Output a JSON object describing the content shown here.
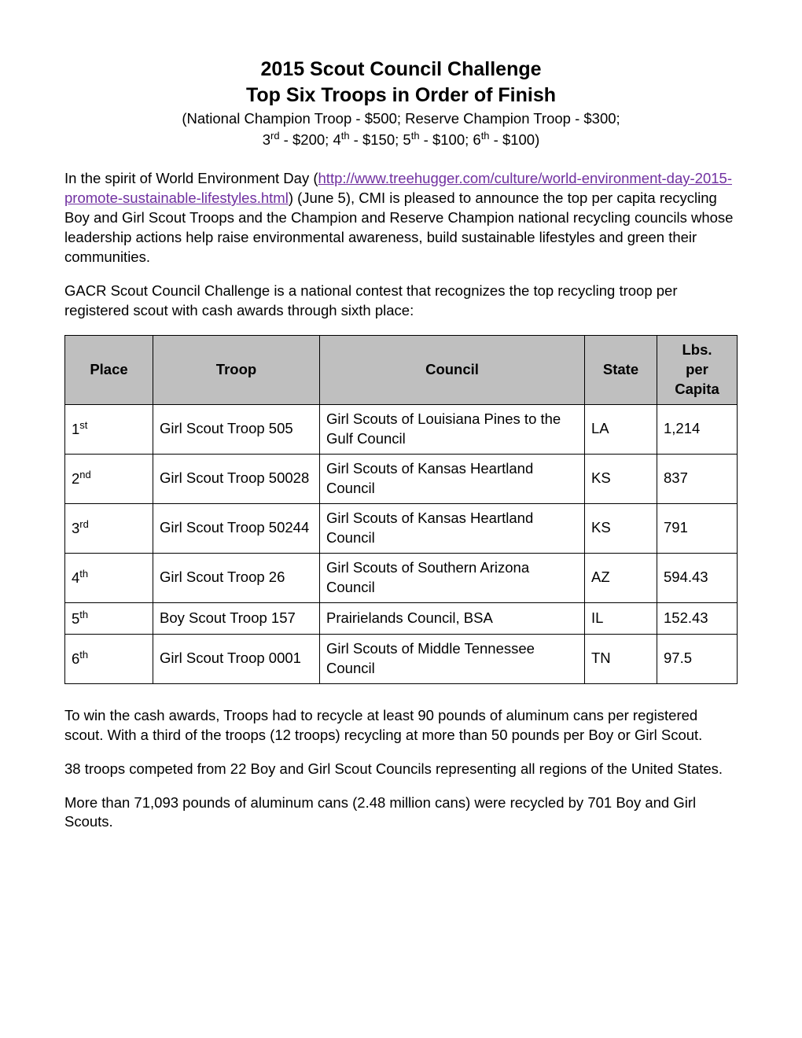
{
  "title": {
    "line1": "2015 Scout Council Challenge",
    "line2": "Top Six Troops in Order of Finish"
  },
  "subtitle": {
    "line1": "(National Champion Troop - $500; Reserve Champion Troop - $300;",
    "prize3_prefix": "3",
    "prize3_suffix": "rd",
    "prize3_amt": " - $200; ",
    "prize4_prefix": "4",
    "prize4_suffix": "th",
    "prize4_amt": " - $150; ",
    "prize5_prefix": "5",
    "prize5_suffix": "th",
    "prize5_amt": " - $100; ",
    "prize6_prefix": "6",
    "prize6_suffix": "th",
    "prize6_amt": " - $100)"
  },
  "intro": {
    "part1": "In the spirit of World Environment Day (",
    "link_text": "http://www.treehugger.com/culture/world-environment-day-2015-promote-sustainable-lifestyles.html",
    "link_href": "http://www.treehugger.com/culture/world-environment-day-2015-promote-sustainable-lifestyles.html",
    "part2": ") (June 5), CMI is pleased to announce the top per capita recycling Boy and Girl Scout Troops and the Champion and Reserve Champion national recycling councils whose leadership actions help raise environmental awareness, build sustainable lifestyles and green their communities."
  },
  "para2": "GACR Scout Council Challenge is a national contest that recognizes the top recycling troop per registered scout with cash awards through sixth place:",
  "table": {
    "headers": {
      "place": "Place",
      "troop": "Troop",
      "council": "Council",
      "state": "State",
      "per_capita_l1": "Lbs.",
      "per_capita_l2": "per",
      "per_capita_l3": "Capita"
    },
    "rows": [
      {
        "place_num": "1",
        "place_suf": "st",
        "troop": "Girl Scout Troop 505",
        "council": "Girl Scouts of Louisiana Pines to the Gulf Council",
        "state": "LA",
        "pc": "1,214"
      },
      {
        "place_num": "2",
        "place_suf": "nd",
        "troop": "Girl Scout Troop 50028",
        "council": "Girl Scouts of Kansas Heartland Council",
        "state": "KS",
        "pc": "837"
      },
      {
        "place_num": "3",
        "place_suf": "rd",
        "troop": "Girl Scout Troop 50244",
        "council": "Girl Scouts of Kansas Heartland Council",
        "state": "KS",
        "pc": "791"
      },
      {
        "place_num": "4",
        "place_suf": "th",
        "troop": "Girl Scout Troop 26",
        "council": "Girl Scouts of Southern Arizona Council",
        "state": "AZ",
        "pc": "594.43"
      },
      {
        "place_num": "5",
        "place_suf": "th",
        "troop": "Boy Scout Troop 157",
        "council": "Prairielands Council, BSA",
        "state": "IL",
        "pc": "152.43"
      },
      {
        "place_num": "6",
        "place_suf": "th",
        "troop": "Girl Scout Troop 0001",
        "council": "Girl Scouts of Middle Tennessee Council",
        "state": "TN",
        "pc": "97.5"
      }
    ]
  },
  "para3": "To win the cash awards, Troops had to recycle at least 90 pounds of aluminum cans per registered scout.  With a third of the troops (12 troops) recycling at more than 50 pounds per Boy or Girl Scout.",
  "para4": "38 troops competed from 22 Boy and Girl Scout Councils representing all regions of the United States.",
  "para5": "More than 71,093 pounds of aluminum cans (2.48 million cans) were recycled by 701 Boy and Girl Scouts."
}
